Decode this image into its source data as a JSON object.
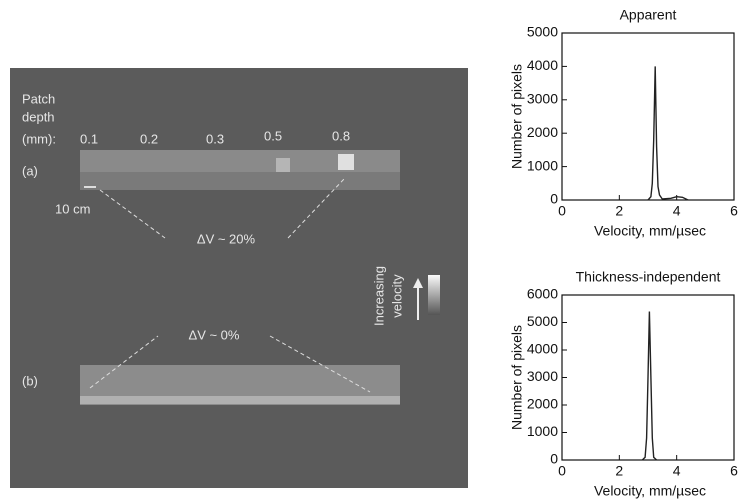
{
  "image_panel": {
    "patch_label": [
      "Patch",
      "depth",
      "(mm):"
    ],
    "depths": [
      "0.1",
      "0.2",
      "0.3",
      "0.5",
      "0.8"
    ],
    "label_a": "(a)",
    "scale": "10 cm",
    "delta_a": "ΔV ~ 20%",
    "legend": [
      "Increasing",
      "velocity"
    ],
    "delta_b": "ΔV ~ 0%",
    "label_b": "(b)"
  },
  "chart_data": [
    {
      "type": "line",
      "title": "Apparent",
      "xlabel": "Velocity, mm/µsec",
      "ylabel": "Number of pixels",
      "x": [
        3.0,
        3.1,
        3.15,
        3.2,
        3.25,
        3.3,
        3.35,
        3.4,
        3.5,
        3.8,
        4.0,
        4.2,
        4.4
      ],
      "values": [
        0,
        100,
        500,
        1800,
        4000,
        1600,
        400,
        150,
        30,
        50,
        100,
        80,
        0
      ],
      "color": "#222222",
      "xlim": [
        0,
        6
      ],
      "xticks": [
        0,
        2,
        4,
        6
      ],
      "ylim": [
        0,
        5000
      ],
      "yticks": [
        0,
        1000,
        2000,
        3000,
        4000,
        5000
      ]
    },
    {
      "type": "line",
      "title": "Thickness-independent",
      "xlabel": "Velocity, mm/µsec",
      "ylabel": "Number of pixels",
      "x": [
        2.8,
        2.9,
        2.95,
        3.0,
        3.05,
        3.1,
        3.15,
        3.2,
        3.3
      ],
      "values": [
        0,
        100,
        800,
        3000,
        5400,
        3000,
        800,
        100,
        0
      ],
      "color": "#222222",
      "xlim": [
        0,
        6
      ],
      "xticks": [
        0,
        2,
        4,
        6
      ],
      "ylim": [
        0,
        6000
      ],
      "yticks": [
        0,
        1000,
        2000,
        3000,
        4000,
        5000,
        6000
      ]
    }
  ]
}
